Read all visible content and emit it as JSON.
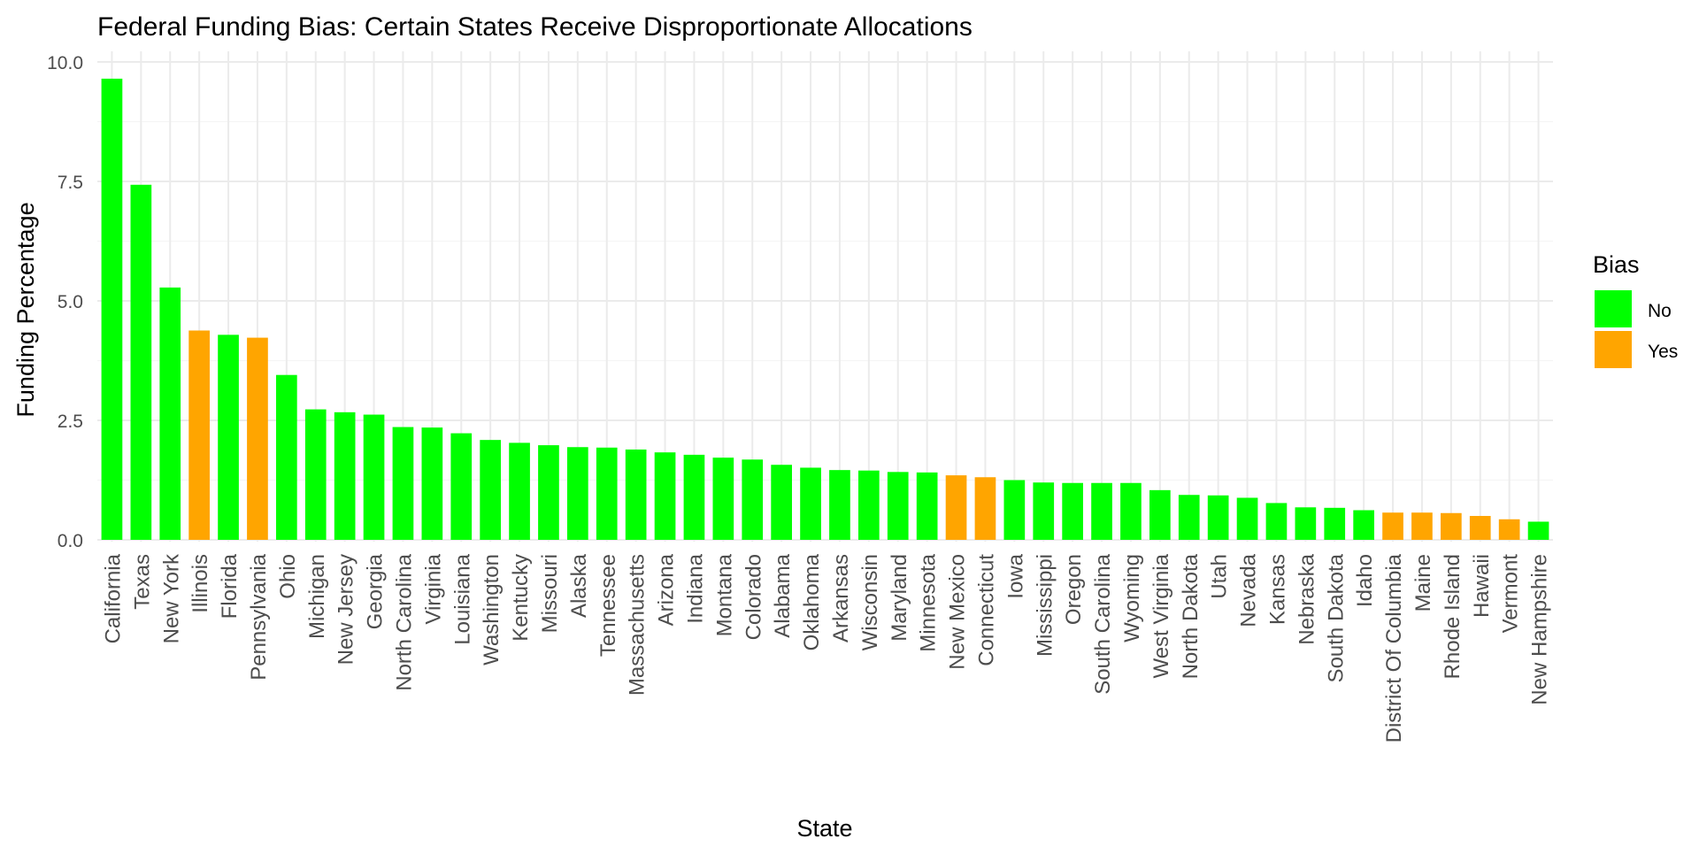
{
  "chart_data": {
    "type": "bar",
    "title": "Federal Funding Bias: Certain States Receive Disproportionate Allocations",
    "xlabel": "State",
    "ylabel": "Funding Percentage",
    "ylim": [
      0,
      10
    ],
    "yticks": [
      0,
      2.5,
      5,
      7.5,
      10
    ],
    "ytick_labels": [
      "0.0",
      "2.5",
      "5.0",
      "7.5",
      "10.0"
    ],
    "grid": true,
    "legend": {
      "title": "Bias",
      "position": "right",
      "entries": [
        {
          "label": "No",
          "color": "#00FF00"
        },
        {
          "label": "Yes",
          "color": "#FFA500"
        }
      ]
    },
    "categories": [
      "California",
      "Texas",
      "New York",
      "Illinois",
      "Florida",
      "Pennsylvania",
      "Ohio",
      "Michigan",
      "New Jersey",
      "Georgia",
      "North Carolina",
      "Virginia",
      "Louisiana",
      "Washington",
      "Kentucky",
      "Missouri",
      "Alaska",
      "Tennessee",
      "Massachusetts",
      "Arizona",
      "Indiana",
      "Montana",
      "Colorado",
      "Alabama",
      "Oklahoma",
      "Arkansas",
      "Wisconsin",
      "Maryland",
      "Minnesota",
      "New Mexico",
      "Connecticut",
      "Iowa",
      "Mississippi",
      "Oregon",
      "South Carolina",
      "Wyoming",
      "West Virginia",
      "North Dakota",
      "Utah",
      "Nevada",
      "Kansas",
      "Nebraska",
      "South Dakota",
      "Idaho",
      "District Of Columbia",
      "Maine",
      "Rhode Island",
      "Hawaii",
      "Vermont",
      "New Hampshire"
    ],
    "values": [
      9.65,
      7.43,
      5.28,
      4.38,
      4.29,
      4.23,
      3.45,
      2.73,
      2.67,
      2.62,
      2.36,
      2.35,
      2.23,
      2.09,
      2.03,
      1.98,
      1.94,
      1.93,
      1.89,
      1.83,
      1.78,
      1.72,
      1.68,
      1.57,
      1.51,
      1.46,
      1.45,
      1.42,
      1.41,
      1.35,
      1.31,
      1.25,
      1.2,
      1.19,
      1.19,
      1.19,
      1.04,
      0.94,
      0.93,
      0.88,
      0.77,
      0.68,
      0.67,
      0.62,
      0.57,
      0.57,
      0.56,
      0.5,
      0.43,
      0.38
    ],
    "bias": [
      "No",
      "No",
      "No",
      "Yes",
      "No",
      "Yes",
      "No",
      "No",
      "No",
      "No",
      "No",
      "No",
      "No",
      "No",
      "No",
      "No",
      "No",
      "No",
      "No",
      "No",
      "No",
      "No",
      "No",
      "No",
      "No",
      "No",
      "No",
      "No",
      "No",
      "Yes",
      "Yes",
      "No",
      "No",
      "No",
      "No",
      "No",
      "No",
      "No",
      "No",
      "No",
      "No",
      "No",
      "No",
      "No",
      "Yes",
      "Yes",
      "Yes",
      "Yes",
      "Yes",
      "No"
    ],
    "colors": {
      "No": "#00FF00",
      "Yes": "#FFA500",
      "grid_major": "#EBEBEB",
      "grid_minor": "#F5F5F5",
      "tick_text": "#4D4D4D",
      "text": "#000000"
    }
  }
}
